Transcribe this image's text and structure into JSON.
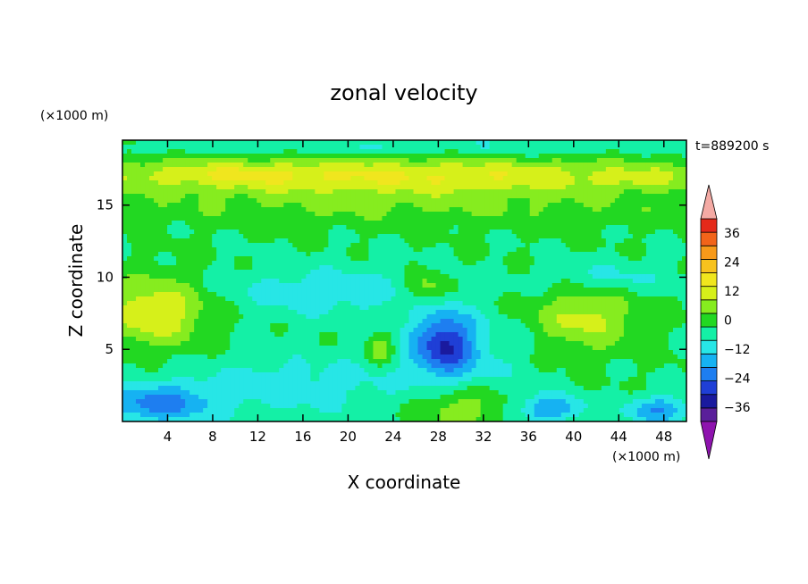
{
  "chart_data": {
    "type": "heatmap",
    "title": "zonal velocity",
    "xlabel": "X coordinate",
    "ylabel": "Z coordinate",
    "x_unit": "(×1000 m)",
    "y_unit": "(×1000 m)",
    "time_label": "t=889200 s",
    "xlim": [
      0,
      50
    ],
    "ylim": [
      0,
      19.5
    ],
    "x_ticks": [
      4,
      8,
      12,
      16,
      20,
      24,
      28,
      32,
      36,
      40,
      44,
      48
    ],
    "x_tick_labels": [
      "4",
      "8",
      "12",
      "16",
      "20",
      "24",
      "28",
      "32",
      "36",
      "40",
      "44",
      "48"
    ],
    "y_ticks": [
      5,
      10,
      15
    ],
    "y_tick_labels": [
      "5",
      "10",
      "15"
    ],
    "colorbar": {
      "levels": [
        -42,
        -36,
        -30,
        -24,
        -18,
        -12,
        -6,
        0,
        6,
        12,
        18,
        24,
        30,
        36,
        42
      ],
      "tick_values": [
        36,
        24,
        12,
        0,
        -12,
        -24,
        -36
      ],
      "tick_labels": [
        "36",
        "24",
        "12",
        "0",
        "−12",
        "−24",
        "−36"
      ],
      "colors": [
        "#5a1f9a",
        "#1a1a9e",
        "#1f3fd6",
        "#1e7ef0",
        "#16b2f2",
        "#27e6e6",
        "#14f0a6",
        "#22d822",
        "#86ec1f",
        "#d6f01a",
        "#f0e61e",
        "#f7c21e",
        "#f79a1a",
        "#f2641a",
        "#e42a1a"
      ],
      "under_color": "#8e13ae",
      "over_color": "#f4aaa4"
    },
    "features": [
      {
        "x": 25,
        "z": 17.0,
        "sx": 28,
        "sz": 1.3,
        "value": 18
      },
      {
        "x": 8,
        "z": 17.2,
        "sx": 9,
        "sz": 0.8,
        "value": 6
      },
      {
        "x": 46,
        "z": 16.9,
        "sx": 3,
        "sz": 0.6,
        "value": 6
      },
      {
        "x": 25,
        "z": 14.8,
        "sx": 30,
        "sz": 1.3,
        "value": 6
      },
      {
        "x": 25,
        "z": 19.0,
        "sx": 30,
        "sz": 0.7,
        "value": -6
      },
      {
        "x": 3,
        "z": 7.6,
        "sx": 4.5,
        "sz": 2.3,
        "value": 18
      },
      {
        "x": 41,
        "z": 7.2,
        "sx": 4.5,
        "sz": 2.2,
        "value": 14
      },
      {
        "x": 27,
        "z": 9.2,
        "sx": 1.8,
        "sz": 1.2,
        "value": 12
      },
      {
        "x": 23,
        "z": 5.0,
        "sx": 1.2,
        "sz": 1.1,
        "value": 12
      },
      {
        "x": 30,
        "z": 1.0,
        "sx": 4.0,
        "sz": 1.5,
        "value": 12
      },
      {
        "x": 28.5,
        "z": 5.5,
        "sx": 2.6,
        "sz": 2.2,
        "value": -24
      },
      {
        "x": 30,
        "z": 4.5,
        "sx": 6,
        "sz": 3,
        "value": -8
      },
      {
        "x": 3,
        "z": 1.2,
        "sx": 5,
        "sz": 1.4,
        "value": -20
      },
      {
        "x": 38,
        "z": 0.9,
        "sx": 3,
        "sz": 1.0,
        "value": -18
      },
      {
        "x": 18,
        "z": 9.0,
        "sx": 9,
        "sz": 1.8,
        "value": -10
      },
      {
        "x": 43,
        "z": 10.0,
        "sx": 6,
        "sz": 1.2,
        "value": -8
      },
      {
        "x": 15,
        "z": 2.5,
        "sx": 10,
        "sz": 2.2,
        "value": -9
      },
      {
        "x": 47.5,
        "z": 0.8,
        "sx": 3,
        "sz": 1.0,
        "value": -18
      }
    ]
  }
}
